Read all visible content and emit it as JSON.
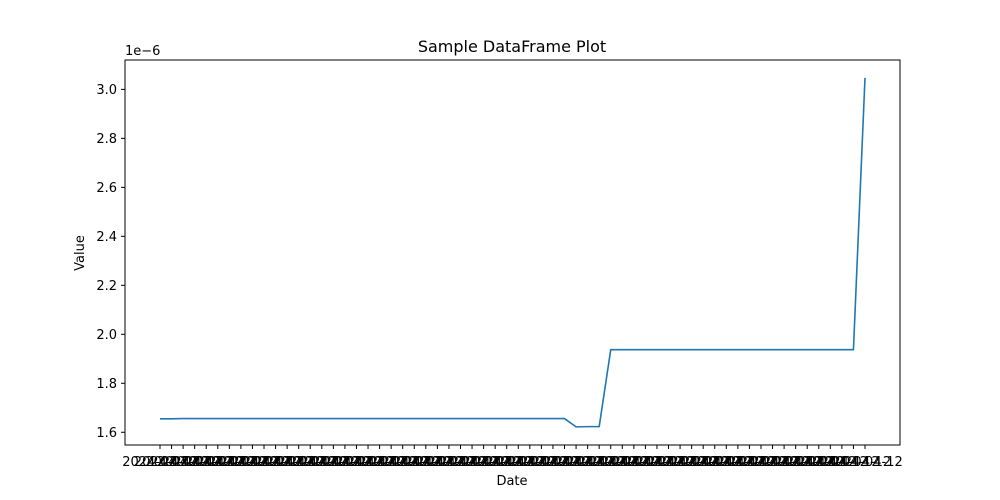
{
  "chart_data": {
    "type": "line",
    "title": "Sample DataFrame Plot",
    "xlabel": "Date",
    "ylabel": "Value",
    "y_offset_label": "1e−6",
    "y_scale": 1e-06,
    "ylim": [
      1.548e-06,
      3.12e-06
    ],
    "yticks": [
      1.6e-06,
      1.8e-06,
      2e-06,
      2.2e-06,
      2.4e-06,
      2.6e-06,
      2.8e-06,
      3e-06
    ],
    "ytick_labels": [
      "1.6",
      "1.8",
      "2.0",
      "2.2",
      "2.4",
      "2.6",
      "2.8",
      "3.0"
    ],
    "grid": false,
    "legend": "none",
    "line_color": "#1f77b4",
    "x_categories": [
      "2024-04-12",
      "2024-04-12",
      "2024-04-12",
      "2024-04-12",
      "2024-04-12",
      "2024-04-12",
      "2024-04-12",
      "2024-04-12",
      "2024-04-12",
      "2024-04-12",
      "2024-04-12",
      "2024-04-12",
      "2024-04-12",
      "2024-04-12",
      "2024-04-12",
      "2024-04-12",
      "2024-04-12",
      "2024-04-12",
      "2024-04-12",
      "2024-04-12",
      "2024-04-12",
      "2024-04-12",
      "2024-04-12",
      "2024-04-12",
      "2024-04-12",
      "2024-04-12",
      "2024-04-12",
      "2024-04-12",
      "2024-04-12",
      "2024-04-12",
      "2024-04-12",
      "2024-04-12",
      "2024-04-12",
      "2024-04-12",
      "2024-04-12",
      "2024-04-12",
      "2024-04-12",
      "2024-04-12",
      "2024-04-12",
      "2024-04-12",
      "2024-04-12",
      "2024-04-12",
      "2024-04-12",
      "2024-04-12",
      "2024-04-12",
      "2024-04-12",
      "2024-04-12",
      "2024-04-12",
      "2024-04-12",
      "2024-04-12",
      "2024-04-12",
      "2024-04-12",
      "2024-04-12",
      "2024-04-12",
      "2024-04-12",
      "2024-04-12",
      "2024-04-12",
      "2024-04-12",
      "2024-04-12",
      "2024-04-12",
      "2024-04-12",
      "2024-04-12"
    ],
    "series": [
      {
        "values": [
          1.655e-06,
          1.655e-06,
          1.656e-06,
          1.656e-06,
          1.656e-06,
          1.656e-06,
          1.656e-06,
          1.656e-06,
          1.656e-06,
          1.656e-06,
          1.656e-06,
          1.656e-06,
          1.656e-06,
          1.656e-06,
          1.656e-06,
          1.656e-06,
          1.656e-06,
          1.656e-06,
          1.656e-06,
          1.656e-06,
          1.656e-06,
          1.656e-06,
          1.656e-06,
          1.656e-06,
          1.656e-06,
          1.656e-06,
          1.656e-06,
          1.656e-06,
          1.656e-06,
          1.656e-06,
          1.656e-06,
          1.656e-06,
          1.656e-06,
          1.656e-06,
          1.656e-06,
          1.656e-06,
          1.622e-06,
          1.623e-06,
          1.623e-06,
          1.937e-06,
          1.937e-06,
          1.937e-06,
          1.937e-06,
          1.937e-06,
          1.937e-06,
          1.937e-06,
          1.937e-06,
          1.937e-06,
          1.937e-06,
          1.937e-06,
          1.937e-06,
          1.937e-06,
          1.937e-06,
          1.937e-06,
          1.937e-06,
          1.937e-06,
          1.937e-06,
          1.937e-06,
          1.937e-06,
          1.937e-06,
          1.937e-06,
          3.047e-06
        ]
      }
    ]
  }
}
